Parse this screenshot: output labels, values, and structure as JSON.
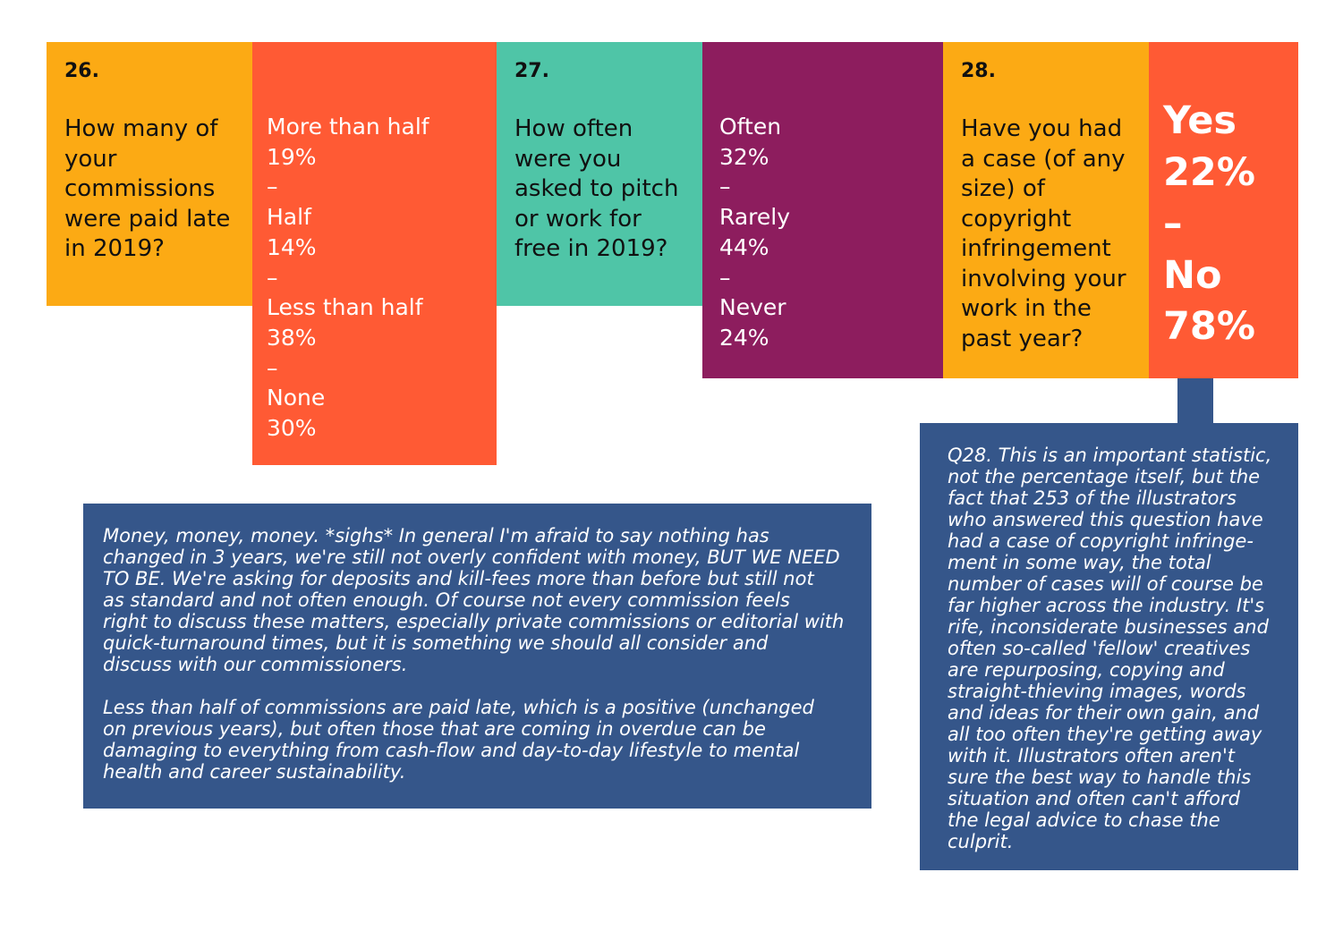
{
  "q26": {
    "number": "26.",
    "question_lines": [
      "How many of",
      "your",
      "commissions",
      "were paid late",
      "in 2019?"
    ],
    "answer_lines": [
      "More than half",
      "19%",
      "–",
      "Half",
      "14%",
      "–",
      "Less than half",
      "38%",
      "–",
      "None",
      "30%"
    ]
  },
  "q27": {
    "number": "27.",
    "question_lines": [
      "How often",
      "were you",
      "asked to pitch",
      "or work for",
      "free in 2019?"
    ],
    "answer_lines": [
      "Often",
      "32%",
      "–",
      "Rarely",
      "44%",
      "–",
      "Never",
      "24%"
    ]
  },
  "q28": {
    "number": "28.",
    "question_lines": [
      "Have you had",
      "a case (of any",
      "size) of",
      "copyright",
      "infringement",
      "involving your",
      "work in the",
      "past year?"
    ],
    "answer_lines": [
      "Yes",
      "22%",
      "–",
      "No",
      "78%"
    ]
  },
  "notes": {
    "main_p1": [
      "Money, money, money.  *sighs*  In general I'm afraid to say nothing has",
      "changed in 3 years, we're still not overly confident with money, BUT WE NEED",
      "TO BE.  We're asking for deposits and kill-fees more than before but still not",
      "as standard and not often enough.  Of course not every commission feels",
      "right to discuss these matters, especially private commissions or editorial with",
      "quick-turnaround times, but it is something we should all consider and",
      "discuss with our commissioners."
    ],
    "main_p2": [
      "Less than half of commissions are paid late, which is a positive (unchanged",
      "on previous years), but often those that are coming in overdue can be",
      "damaging to everything from cash-flow and day-to-day lifestyle to mental",
      "health and career sustainability."
    ],
    "q28_note": [
      "Q28. This is an important statistic,",
      "not the percentage itself, but the",
      "fact that 253 of the illustrators",
      "who answered this question have",
      "had a case of copyright infringe-",
      "ment in some way, the total",
      "number of cases will of course be",
      "far higher across the industry.  It's",
      "rife, inconsiderate businesses and",
      "often so-called 'fellow' creatives",
      "are repurposing, copying and",
      "straight-thieving images, words",
      "and ideas for their own gain, and",
      "all too often they're getting away",
      "with it.  Illustrators often aren't",
      "sure the best way to handle this",
      "situation and often can't afford",
      "the legal advice to chase the",
      "culprit."
    ]
  },
  "colors": {
    "amber": "#FCAA14",
    "orange_red": "#FF5A34",
    "teal": "#4FC5A7",
    "plum": "#8D1D5E",
    "navy": "#35568A"
  }
}
